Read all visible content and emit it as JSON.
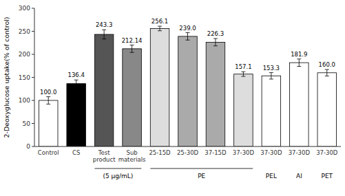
{
  "chart_data": {
    "type": "bar",
    "categories": [
      "Control",
      "CS",
      "Test\nproduct",
      "Sub\nmaterials",
      "25-15D",
      "25-30D",
      "37-15D",
      "37-30D",
      "37-30D",
      "37-30D",
      "37-30D"
    ],
    "values": [
      100.0,
      136.4,
      243.3,
      212.14,
      256.1,
      239.0,
      226.3,
      157.1,
      153.3,
      181.9,
      160.0
    ],
    "value_labels": [
      "100.0",
      "136.4",
      "243.3",
      "212.14",
      "256.1",
      "239.0",
      "226.3",
      "157.1",
      "153.3",
      "181.9",
      "160.0"
    ],
    "errors": [
      8,
      8,
      10,
      8,
      5,
      8,
      8,
      5,
      7,
      8,
      7
    ],
    "colors": [
      "white",
      "black",
      "#555555",
      "#888888",
      "#dddddd",
      "#aaaaaa",
      "#aaaaaa",
      "#dddddd",
      "white",
      "white",
      "white"
    ],
    "ylabel": "2-Deoxyglucose uptake(% of control)",
    "ylim": [
      0,
      300
    ],
    "yticks": [
      0,
      50,
      100,
      150,
      200,
      250,
      300
    ],
    "data_labels": true,
    "grid": false,
    "groups": [
      {
        "label": "(5 μg/mL)",
        "start": 2,
        "end": 3
      },
      {
        "label": "PE",
        "start": 4,
        "end": 7
      },
      {
        "label": "PEL",
        "start": 8,
        "end": 8
      },
      {
        "label": "Al",
        "start": 9,
        "end": 9
      },
      {
        "label": "PET",
        "start": 10,
        "end": 10
      }
    ]
  }
}
